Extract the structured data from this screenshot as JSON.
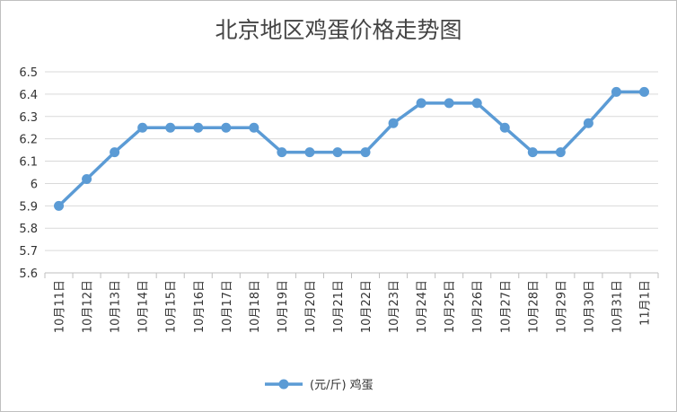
{
  "chart_data": {
    "type": "line",
    "title": "北京地区鸡蛋价格走势图",
    "categories": [
      "10月11日",
      "10月12日",
      "10月13日",
      "10月14日",
      "10月15日",
      "10月16日",
      "10月17日",
      "10月18日",
      "10月19日",
      "10月20日",
      "10月21日",
      "10月22日",
      "10月23日",
      "10月24日",
      "10月25日",
      "10月26日",
      "10月27日",
      "10月28日",
      "10月29日",
      "10月30日",
      "10月31日",
      "11月1日"
    ],
    "series": [
      {
        "name": "(元/斤) 鸡蛋",
        "values": [
          5.9,
          6.02,
          6.14,
          6.25,
          6.25,
          6.25,
          6.25,
          6.25,
          6.14,
          6.14,
          6.14,
          6.14,
          6.27,
          6.36,
          6.36,
          6.36,
          6.25,
          6.14,
          6.14,
          6.27,
          6.41,
          6.41
        ],
        "color": "#5b9bd5"
      }
    ],
    "yticks": [
      "5.6",
      "5.7",
      "5.8",
      "5.9",
      "6",
      "6.1",
      "6.2",
      "6.3",
      "6.4",
      "6.5"
    ],
    "ylim": [
      5.6,
      6.5
    ],
    "grid": true,
    "legend": "bottom"
  }
}
